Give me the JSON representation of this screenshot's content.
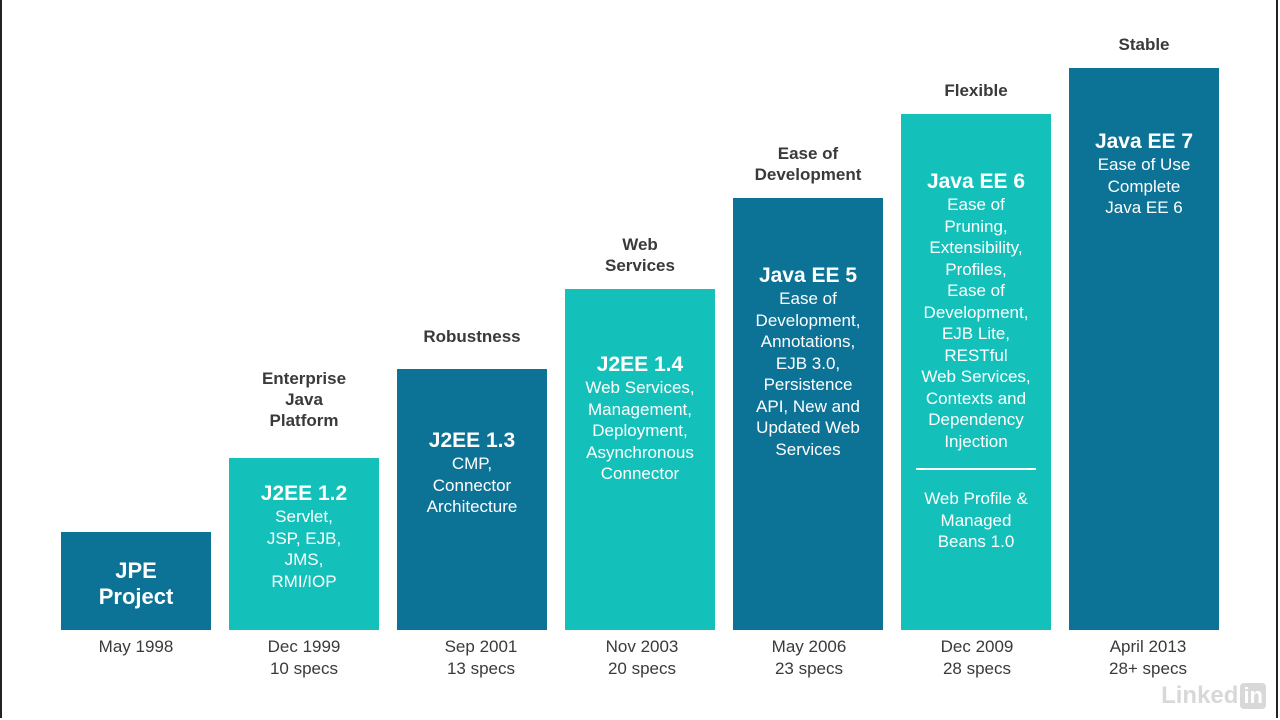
{
  "releases": [
    {
      "caption": "",
      "title": "JPE\nProject",
      "body": "",
      "extra": "",
      "date": "May 1998",
      "specs": ""
    },
    {
      "caption": "Enterprise\nJava\nPlatform",
      "title": "J2EE 1.2",
      "body": "Servlet,\nJSP, EJB,\nJMS,\nRMI/IOP",
      "extra": "",
      "date": "Dec 1999",
      "specs": "10 specs"
    },
    {
      "caption": "Robustness",
      "title": "J2EE 1.3",
      "body": "CMP,\nConnector\nArchitecture",
      "extra": "",
      "date": "Sep 2001",
      "specs": "13 specs"
    },
    {
      "caption": "Web\nServices",
      "title": "J2EE 1.4",
      "body": "Web Services,\nManagement,\nDeployment,\nAsynchronous\nConnector",
      "extra": "",
      "date": "Nov 2003",
      "specs": "20 specs"
    },
    {
      "caption": "Ease of\nDevelopment",
      "title": "Java EE 5",
      "body": "Ease of\nDevelopment,\nAnnotations,\nEJB 3.0,\nPersistence\nAPI, New and\nUpdated Web\nServices",
      "extra": "",
      "date": "May 2006",
      "specs": "23 specs"
    },
    {
      "caption": "Flexible",
      "title": "Java EE 6",
      "body": "Ease of\nPruning,\nExtensibility,\nProfiles,\nEase of\nDevelopment,\nEJB Lite,\nRESTful\nWeb Services,\nContexts and\nDependency\nInjection",
      "extra": "Web Profile &\nManaged\nBeans 1.0",
      "date": "Dec 2009",
      "specs": "28 specs"
    },
    {
      "caption": "Stable",
      "title": "Java EE 7",
      "body": "Ease of Use\nComplete\nJava EE 6",
      "extra": "",
      "date": "April 2013",
      "specs": "28+ specs"
    }
  ],
  "logo": {
    "text": "Linked",
    "badge": "in"
  },
  "colors": {
    "dark": "#0c7396",
    "light": "#13c1ba"
  }
}
